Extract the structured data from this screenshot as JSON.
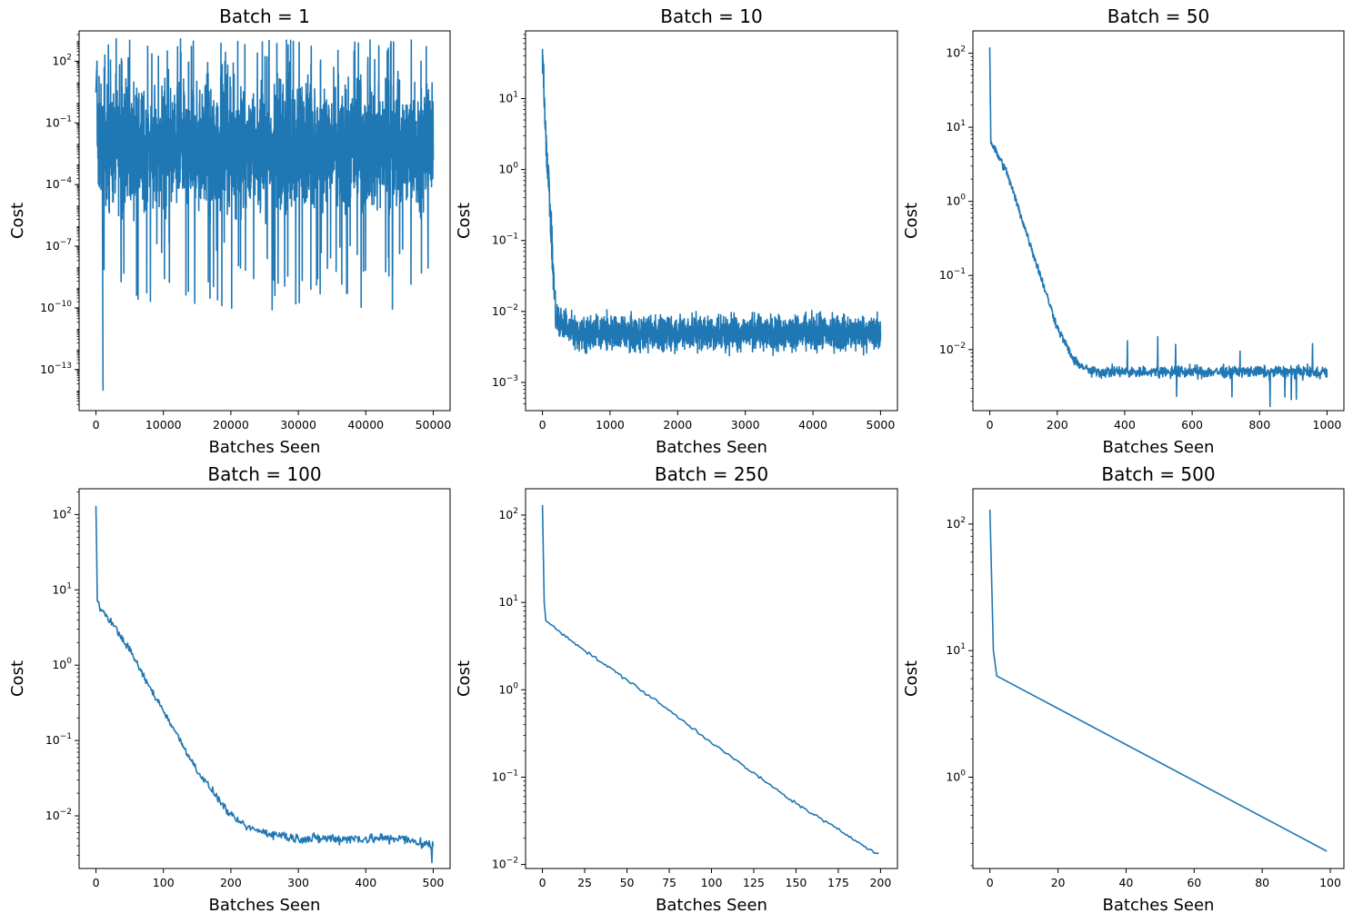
{
  "chart_data": [
    {
      "type": "line",
      "title": "Batch = 1",
      "xlabel": "Batches Seen",
      "ylabel": "Cost",
      "yscale": "log",
      "xlim": [
        -2500,
        52500
      ],
      "ylim": [
        1e-15,
        3000
      ],
      "xticks": [
        0,
        10000,
        20000,
        30000,
        40000,
        50000
      ],
      "xtick_labels": [
        "0",
        "10000",
        "20000",
        "30000",
        "40000",
        "50000"
      ],
      "yticks": [
        1e-13,
        1e-10,
        1e-07,
        0.0001,
        0.1,
        100
      ],
      "ytick_labels": [
        "10^{-13}",
        "10^{-10}",
        "10^{-7}",
        "10^{-4}",
        "10^{-1}",
        "10^{2}"
      ],
      "color": "#1f77b4",
      "x_max": 50000,
      "approx_pattern": "dense noise between ~1e-6 and ~1, spikes up to ~1000 and down to ~1e-14",
      "series": [
        {
          "x": [
            0,
            500,
            1000,
            1200,
            2500,
            5000,
            15000,
            25000,
            33000,
            45000,
            50000
          ],
          "y": [
            100,
            0.001,
            1e-14,
            1e-05,
            0.0001,
            0.001,
            0.0001,
            0.001,
            1000,
            0.0001,
            0.01
          ]
        }
      ]
    },
    {
      "type": "line",
      "title": "Batch = 10",
      "xlabel": "Batches Seen",
      "ylabel": "Cost",
      "yscale": "log",
      "xlim": [
        -250,
        5250
      ],
      "ylim": [
        0.0004,
        90
      ],
      "xticks": [
        0,
        1000,
        2000,
        3000,
        4000,
        5000
      ],
      "xtick_labels": [
        "0",
        "1000",
        "2000",
        "3000",
        "4000",
        "5000"
      ],
      "yticks": [
        0.001,
        0.01,
        0.1,
        1,
        10
      ],
      "ytick_labels": [
        "10^{-3}",
        "10^{-2}",
        "10^{-1}",
        "10^{0}",
        "10^{1}"
      ],
      "color": "#1f77b4",
      "x_max": 5000,
      "approx_pattern": "drops from ~50 to ~0.005 by x≈200, then noise between ~0.001 and ~0.02",
      "series": [
        {
          "x": [
            0,
            50,
            100,
            150,
            200,
            500,
            1000,
            2000,
            3000,
            4000,
            5000
          ],
          "y": [
            50,
            3,
            0.5,
            0.05,
            0.008,
            0.005,
            0.005,
            0.005,
            0.005,
            0.005,
            0.005
          ]
        }
      ]
    },
    {
      "type": "line",
      "title": "Batch = 50",
      "xlabel": "Batches Seen",
      "ylabel": "Cost",
      "yscale": "log",
      "xlim": [
        -50,
        1050
      ],
      "ylim": [
        0.0015,
        200
      ],
      "xticks": [
        0,
        200,
        400,
        600,
        800,
        1000
      ],
      "xtick_labels": [
        "0",
        "200",
        "400",
        "600",
        "800",
        "1000"
      ],
      "yticks": [
        0.01,
        0.1,
        1,
        10,
        100
      ],
      "ytick_labels": [
        "10^{-2}",
        "10^{-1}",
        "10^{0}",
        "10^{1}",
        "10^{2}"
      ],
      "color": "#1f77b4",
      "x_max": 1000,
      "approx_pattern": "noisy decay, floor ~0.005 with noise",
      "series": [
        {
          "x": [
            0,
            3,
            10,
            50,
            100,
            150,
            200,
            250,
            300,
            400,
            600,
            800,
            1000
          ],
          "y": [
            120,
            6.5,
            5.5,
            2.5,
            0.5,
            0.1,
            0.02,
            0.007,
            0.005,
            0.005,
            0.005,
            0.005,
            0.005
          ]
        }
      ]
    },
    {
      "type": "line",
      "title": "Batch = 100",
      "xlabel": "Batches Seen",
      "ylabel": "Cost",
      "yscale": "log",
      "xlim": [
        -25,
        525
      ],
      "ylim": [
        0.002,
        220
      ],
      "xticks": [
        0,
        100,
        200,
        300,
        400,
        500
      ],
      "xtick_labels": [
        "0",
        "100",
        "200",
        "300",
        "400",
        "500"
      ],
      "yticks": [
        0.01,
        0.1,
        1,
        10,
        100
      ],
      "ytick_labels": [
        "10^{-2}",
        "10^{-1}",
        "10^{0}",
        "10^{1}",
        "10^{2}"
      ],
      "color": "#1f77b4",
      "x_max": 500,
      "approx_pattern": "noisy decay, floor ~0.005 with noise",
      "series": [
        {
          "x": [
            0,
            2,
            5,
            25,
            50,
            75,
            100,
            125,
            150,
            175,
            200,
            225,
            250,
            300,
            350,
            400,
            450,
            500
          ],
          "y": [
            130,
            7,
            6,
            3.5,
            1.6,
            0.6,
            0.25,
            0.1,
            0.04,
            0.02,
            0.01,
            0.007,
            0.006,
            0.005,
            0.005,
            0.005,
            0.005,
            0.004
          ]
        }
      ]
    },
    {
      "type": "line",
      "title": "Batch = 250",
      "xlabel": "Batches Seen",
      "ylabel": "Cost",
      "yscale": "log",
      "xlim": [
        -10,
        210
      ],
      "ylim": [
        0.009,
        200
      ],
      "xticks": [
        0,
        25,
        50,
        75,
        100,
        125,
        150,
        175,
        200
      ],
      "xtick_labels": [
        "0",
        "25",
        "50",
        "75",
        "100",
        "125",
        "150",
        "175",
        "200"
      ],
      "yticks": [
        0.01,
        0.1,
        1,
        10,
        100
      ],
      "ytick_labels": [
        "10^{-2}",
        "10^{-1}",
        "10^{0}",
        "10^{1}",
        "10^{2}"
      ],
      "color": "#1f77b4",
      "x_max": 199,
      "approx_pattern": "slightly noisy exponential decay",
      "series": [
        {
          "x": [
            0,
            1,
            2,
            25,
            50,
            75,
            100,
            125,
            150,
            175,
            199
          ],
          "y": [
            130,
            10,
            6.2,
            2.8,
            1.3,
            0.58,
            0.25,
            0.11,
            0.05,
            0.025,
            0.013
          ]
        }
      ]
    },
    {
      "type": "line",
      "title": "Batch = 500",
      "xlabel": "Batches Seen",
      "ylabel": "Cost",
      "yscale": "log",
      "xlim": [
        -5,
        104
      ],
      "ylim": [
        0.19,
        190
      ],
      "xticks": [
        0,
        20,
        40,
        60,
        80,
        100
      ],
      "xtick_labels": [
        "0",
        "20",
        "40",
        "60",
        "80",
        "100"
      ],
      "yticks": [
        1,
        10,
        100
      ],
      "ytick_labels": [
        "10^{0}",
        "10^{1}",
        "10^{2}"
      ],
      "color": "#1f77b4",
      "x_max": 99,
      "series": [
        {
          "x": [
            0,
            1,
            2,
            99
          ],
          "y": [
            130,
            10,
            6.3,
            0.26
          ]
        }
      ]
    }
  ]
}
